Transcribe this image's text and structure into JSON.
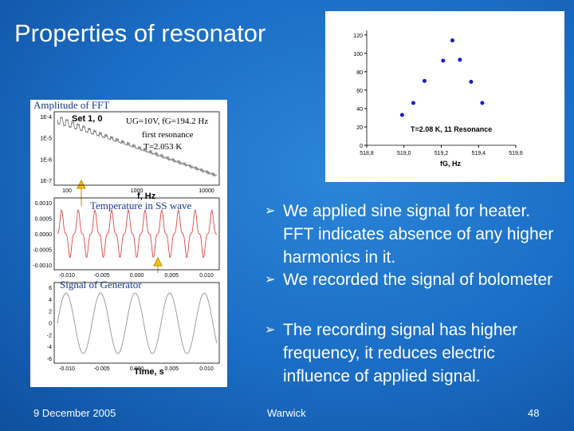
{
  "slide": {
    "title": "Properties of resonator",
    "bullets": [
      "We applied sine signal for heater. FFT indicates absence of any higher harmonics in it.",
      "We recorded the signal of bolometer",
      "The recording signal has higher frequency, it reduces electric influence of applied signal."
    ],
    "footer": {
      "date": "9 December 2005",
      "place": "Warwick",
      "page": "48"
    }
  },
  "left_figure": {
    "fft_label": "Amplitude of FFT",
    "fft_set": "Set 1, 0",
    "fft_params": "UG=10V, fG=194.2 Hz",
    "fft_resonance": "first resonance",
    "fft_temperature": "T=2.053 K",
    "fft_xlabel": "f, Hz",
    "fft_yticks": [
      "1E-4",
      "1E-5",
      "1E-6",
      "1E-7"
    ],
    "fft_xticks": [
      "100",
      "1000",
      "10000"
    ],
    "signal_label": "Temperature in SS wave",
    "signal_yticks": [
      "0.0010",
      "0.0005",
      "0.0000",
      "-0.0005",
      "-0.0010"
    ],
    "signal_xticks": [
      "-0.010",
      "-0.005",
      "0.000",
      "0.005",
      "0.010"
    ],
    "generator_label": "Signal of Generator",
    "generator_yticks": [
      "6",
      "4",
      "2",
      "0",
      "-2",
      "-4",
      "-6"
    ],
    "generator_xticks": [
      "-0.010",
      "-0.005",
      "0.000",
      "0.005",
      "0.010"
    ],
    "generator_xlabel": "Time, s"
  },
  "resonance_plot": {
    "type": "scatter",
    "x": [
      518.99,
      519.05,
      519.11,
      519.21,
      519.26,
      519.3,
      519.36,
      519.42
    ],
    "y": [
      33,
      46,
      70,
      92,
      114,
      93,
      69,
      46
    ],
    "color": "#1a1ad0",
    "xlim": [
      518.8,
      519.6
    ],
    "ylim": [
      0,
      125
    ],
    "xticks": [
      {
        "value": 518.8,
        "label": "518,8"
      },
      {
        "value": 519.0,
        "label": "519,0"
      },
      {
        "value": 519.2,
        "label": "519,2"
      },
      {
        "value": 519.4,
        "label": "519,4"
      },
      {
        "value": 519.6,
        "label": "519,6"
      }
    ],
    "yticks": [
      0,
      20,
      40,
      60,
      80,
      100,
      120
    ],
    "annotation": "T=2.08 K, 11 Resonance",
    "xlabel": "fG, Hz"
  }
}
